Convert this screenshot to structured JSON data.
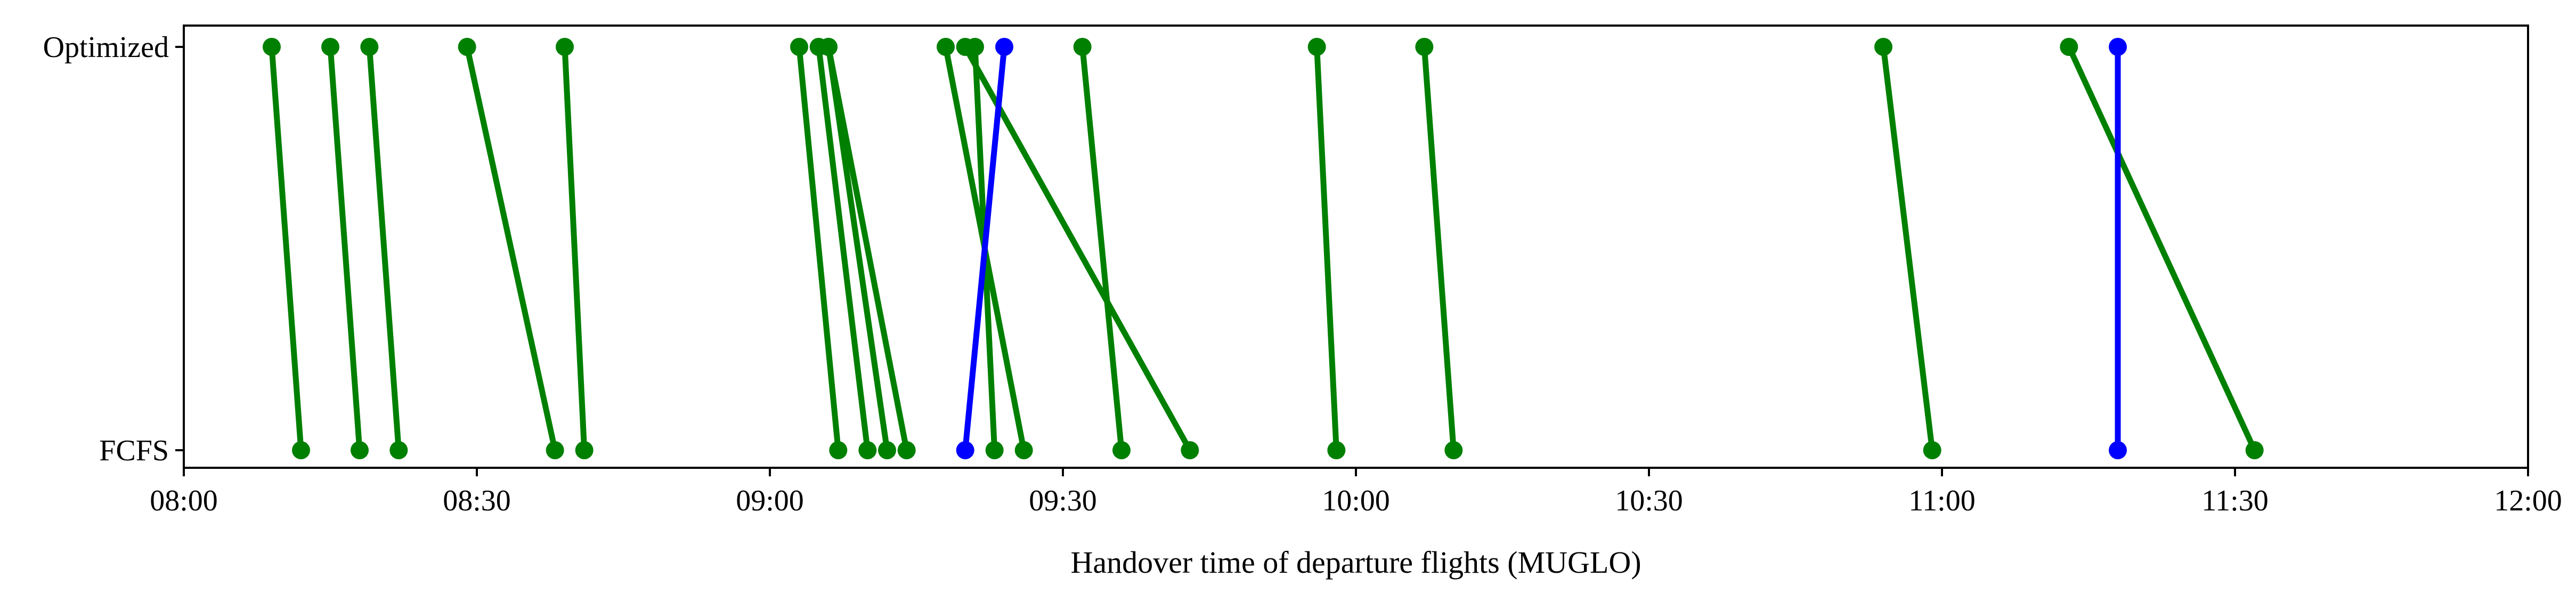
{
  "chart_data": {
    "type": "line",
    "xlabel": "Handover time of departure flights (MUGLO)",
    "x_ticks": [
      "08:00",
      "08:30",
      "09:00",
      "09:30",
      "10:00",
      "10:30",
      "11:00",
      "11:30",
      "12:00"
    ],
    "xlim": [
      "08:00",
      "12:00"
    ],
    "y_categories": [
      "FCFS",
      "Optimized"
    ],
    "grid": false,
    "legend": "none",
    "colors": {
      "unchanged": "#0000ff",
      "changed": "#008000"
    },
    "series": [
      {
        "fcfs": "08:12",
        "optimized": "08:09",
        "color": "#008000"
      },
      {
        "fcfs": "08:18",
        "optimized": "08:15",
        "color": "#008000"
      },
      {
        "fcfs": "08:22",
        "optimized": "08:19",
        "color": "#008000"
      },
      {
        "fcfs": "08:38",
        "optimized": "08:29",
        "color": "#008000"
      },
      {
        "fcfs": "08:41",
        "optimized": "08:39",
        "color": "#008000"
      },
      {
        "fcfs": "09:07",
        "optimized": "09:03",
        "color": "#008000"
      },
      {
        "fcfs": "09:10",
        "optimized": "09:05",
        "color": "#008000"
      },
      {
        "fcfs": "09:12",
        "optimized": "09:06",
        "color": "#008000"
      },
      {
        "fcfs": "09:14",
        "optimized": "09:06",
        "color": "#008000"
      },
      {
        "fcfs": "09:23",
        "optimized": "09:21",
        "color": "#008000"
      },
      {
        "fcfs": "09:26",
        "optimized": "09:18",
        "color": "#008000"
      },
      {
        "fcfs": "09:36",
        "optimized": "09:32",
        "color": "#008000"
      },
      {
        "fcfs": "09:43",
        "optimized": "09:20",
        "color": "#008000"
      },
      {
        "fcfs": "09:20",
        "optimized": "09:24",
        "color": "#0000ff"
      },
      {
        "fcfs": "09:58",
        "optimized": "09:56",
        "color": "#008000"
      },
      {
        "fcfs": "10:10",
        "optimized": "10:07",
        "color": "#008000"
      },
      {
        "fcfs": "10:59",
        "optimized": "10:54",
        "color": "#008000"
      },
      {
        "fcfs": "11:32",
        "optimized": "11:13",
        "color": "#008000"
      },
      {
        "fcfs": "11:18",
        "optimized": "11:18",
        "color": "#0000ff"
      }
    ]
  }
}
